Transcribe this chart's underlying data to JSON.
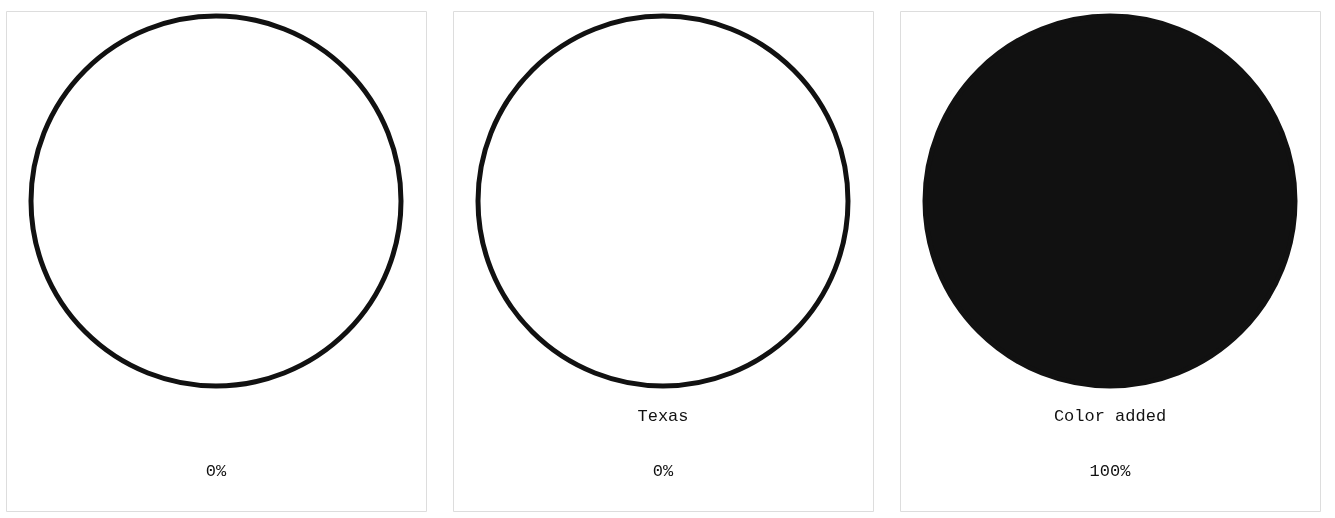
{
  "chart_data": [
    {
      "type": "pie",
      "categories": [
        null,
        null
      ],
      "values": [
        0,
        100
      ],
      "colors": [
        "#111111",
        "#ffffff"
      ],
      "value_labels": [
        "0%",
        null
      ]
    },
    {
      "type": "pie",
      "title": "Texas",
      "categories": [
        null,
        null
      ],
      "values": [
        0,
        100
      ],
      "colors": [
        "#111111",
        "#ffffff"
      ],
      "value_labels": [
        "0%",
        null
      ]
    },
    {
      "type": "pie",
      "title": "Color added",
      "categories": [
        null,
        null
      ],
      "values": [
        100,
        0
      ],
      "colors": [
        "#111111",
        "#ffffff"
      ],
      "value_labels": [
        "100%",
        null
      ]
    }
  ]
}
